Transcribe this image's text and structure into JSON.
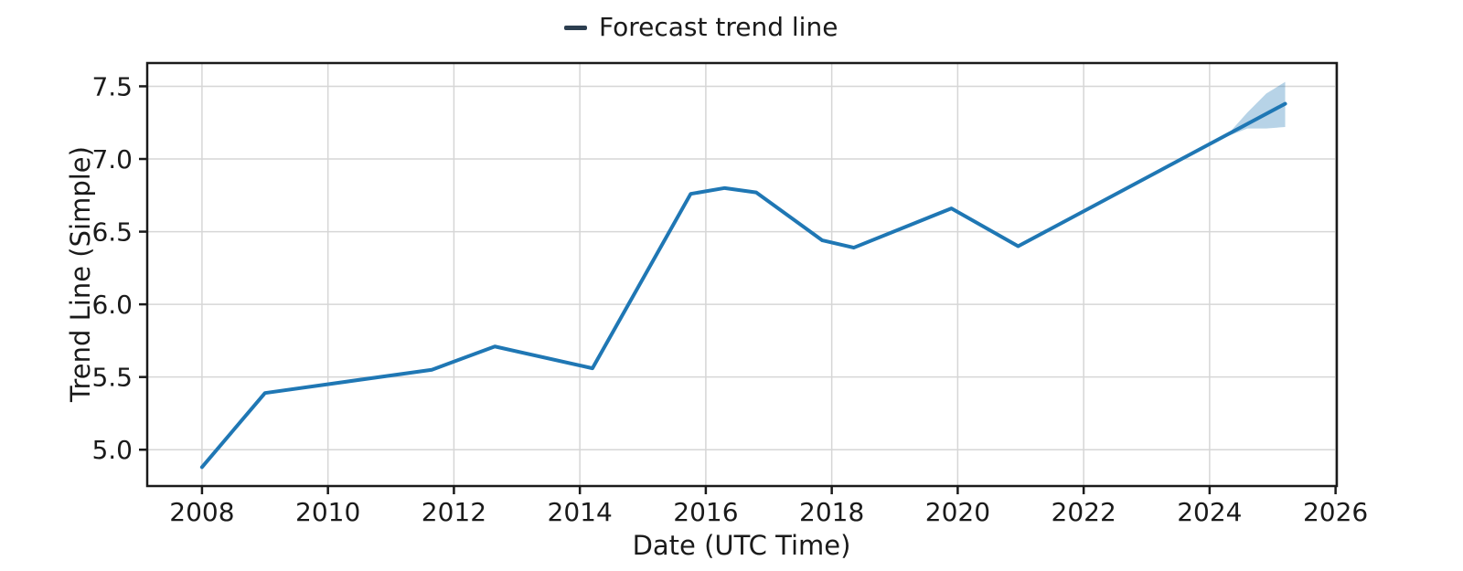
{
  "legend": {
    "label": "Forecast trend line"
  },
  "axes": {
    "x_label": "Date (UTC Time)",
    "y_label": "Trend Line (Simple)"
  },
  "colors": {
    "line": "#1f77b4",
    "band_fill": "rgba(31,119,180,0.32)",
    "grid": "#d6d6d6",
    "spine": "#1a1a1a",
    "tick": "#1a1a1a",
    "text": "#1a1a1a",
    "legend_swatch": "#2c3e50",
    "background": "#ffffff"
  },
  "chart_data": {
    "type": "line",
    "title": "",
    "xlabel": "Date (UTC Time)",
    "ylabel": "Trend Line (Simple)",
    "grid": true,
    "legend_position": "top-center",
    "xlim": [
      2007.13,
      2026.02
    ],
    "ylim": [
      4.75,
      7.66
    ],
    "x_ticks": {
      "values": [
        2008,
        2010,
        2012,
        2014,
        2016,
        2018,
        2020,
        2022,
        2024,
        2026
      ],
      "labels": [
        "2008",
        "2010",
        "2012",
        "2014",
        "2016",
        "2018",
        "2020",
        "2022",
        "2024",
        "2026"
      ]
    },
    "y_ticks": {
      "values": [
        5.0,
        5.5,
        6.0,
        6.5,
        7.0,
        7.5
      ],
      "labels": [
        "5.0",
        "5.5",
        "6.0",
        "6.5",
        "7.0",
        "7.5"
      ]
    },
    "series": [
      {
        "name": "Forecast trend line",
        "x": [
          2008.0,
          2009.0,
          2011.65,
          2012.65,
          2014.2,
          2015.76,
          2016.3,
          2016.8,
          2017.85,
          2018.35,
          2019.9,
          2020.96,
          2025.2
        ],
        "y": [
          4.88,
          5.39,
          5.55,
          5.71,
          5.56,
          6.76,
          6.8,
          6.77,
          6.44,
          6.39,
          6.66,
          6.4,
          7.38
        ]
      }
    ],
    "confidence_band": {
      "x": [
        2024.25,
        2024.6,
        2024.9,
        2025.2
      ],
      "upper": [
        7.15,
        7.32,
        7.45,
        7.53
      ],
      "lower": [
        7.15,
        7.21,
        7.21,
        7.22
      ]
    }
  }
}
